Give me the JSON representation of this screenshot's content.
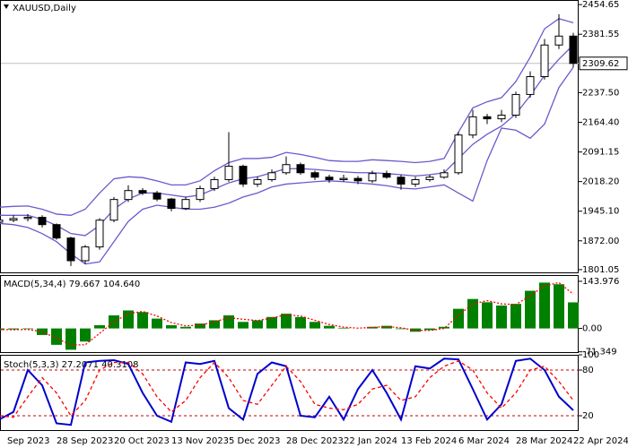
{
  "chart_data": [
    {
      "type": "candlestick",
      "title": "XAUUSD,Daily",
      "categories": [
        "Sep 2023",
        null,
        null,
        null,
        "28 Sep 2023",
        null,
        null,
        null,
        "20 Oct 2023",
        null,
        null,
        null,
        "13 Nov 2023",
        null,
        null,
        null,
        "5 Dec 2023",
        null,
        null,
        null,
        "28 Dec 2023",
        null,
        null,
        null,
        "22 Jan 2024",
        null,
        null,
        null,
        "13 Feb 2024",
        null,
        null,
        null,
        "6 Mar 2024",
        null,
        null,
        null,
        "28 Mar 2024",
        null,
        null,
        null,
        "22 Apr 2024"
      ],
      "open": [
        1918,
        1923,
        1927,
        1930,
        1912,
        1879,
        1823,
        1857,
        1923,
        1974,
        1996,
        1990,
        1975,
        1952,
        1974,
        2001,
        2023,
        2056,
        2012,
        2023,
        2040,
        2060,
        2040,
        2029,
        2023,
        2026,
        2020,
        2038,
        2029,
        2012,
        2023,
        2029,
        2040,
        2133,
        2178,
        2173,
        2182,
        2233,
        2277,
        2355,
        2377
      ],
      "high": [
        1930,
        1935,
        1938,
        1935,
        1915,
        1882,
        1862,
        1928,
        1980,
        2009,
        2002,
        1995,
        1978,
        1980,
        2008,
        2030,
        2140,
        2060,
        2030,
        2048,
        2080,
        2065,
        2045,
        2035,
        2035,
        2032,
        2045,
        2045,
        2035,
        2030,
        2035,
        2048,
        2140,
        2195,
        2185,
        2195,
        2240,
        2290,
        2370,
        2431,
        2385
      ],
      "low": [
        1915,
        1918,
        1920,
        1905,
        1875,
        1810,
        1815,
        1850,
        1918,
        1968,
        1985,
        1970,
        1945,
        1948,
        1968,
        1995,
        2018,
        2005,
        2005,
        2018,
        2035,
        2035,
        2022,
        2015,
        2018,
        2012,
        2015,
        2025,
        1998,
        2005,
        2018,
        2025,
        2035,
        2125,
        2160,
        2165,
        2175,
        2225,
        2270,
        2345,
        2300
      ],
      "close": [
        1923,
        1927,
        1930,
        1912,
        1879,
        1823,
        1857,
        1923,
        1974,
        1996,
        1990,
        1975,
        1952,
        1974,
        2001,
        2023,
        2056,
        2012,
        2023,
        2040,
        2060,
        2040,
        2029,
        2023,
        2026,
        2020,
        2038,
        2029,
        2012,
        2023,
        2029,
        2040,
        2133,
        2178,
        2173,
        2182,
        2233,
        2277,
        2355,
        2377,
        2309.62
      ],
      "up_color": "#ffffff",
      "down_color": "#000000",
      "overlays": [
        {
          "color": "#6a5acd",
          "values": [
            1955,
            1957,
            1958,
            1950,
            1938,
            1935,
            1950,
            1990,
            2025,
            2030,
            2028,
            2020,
            2010,
            2010,
            2020,
            2045,
            2065,
            2075,
            2075,
            2078,
            2090,
            2085,
            2078,
            2070,
            2068,
            2068,
            2072,
            2070,
            2068,
            2065,
            2068,
            2075,
            2140,
            2200,
            2215,
            2225,
            2265,
            2325,
            2395,
            2420,
            2410
          ]
        },
        {
          "color": "#6a5acd",
          "values": [
            1935,
            1935,
            1935,
            1925,
            1910,
            1890,
            1885,
            1910,
            1950,
            1975,
            1990,
            1990,
            1985,
            1980,
            1985,
            2000,
            2015,
            2025,
            2030,
            2040,
            2050,
            2050,
            2048,
            2045,
            2042,
            2040,
            2040,
            2038,
            2035,
            2032,
            2035,
            2040,
            2075,
            2110,
            2135,
            2155,
            2185,
            2230,
            2280,
            2320,
            2355
          ]
        },
        {
          "color": "#6a5acd",
          "values": [
            1915,
            1912,
            1905,
            1890,
            1870,
            1840,
            1815,
            1820,
            1870,
            1920,
            1950,
            1960,
            1955,
            1950,
            1950,
            1955,
            1965,
            1980,
            1990,
            2005,
            2012,
            2015,
            2018,
            2020,
            2018,
            2015,
            2012,
            2008,
            2002,
            2000,
            2005,
            2010,
            1990,
            1970,
            2070,
            2150,
            2145,
            2125,
            2160,
            2250,
            2300
          ]
        }
      ],
      "last_price": 2309.62,
      "ylim": [
        1792,
        2466
      ],
      "yticks": [
        2454.65,
        2381.55,
        {
          "value": 2237.5,
          "label": "2237.50"
        },
        {
          "value": 2164.4,
          "label": "2164.40"
        },
        2091.15,
        {
          "value": 2018.2,
          "label": "2018.20"
        },
        {
          "value": 1945.1,
          "label": "1945.10"
        },
        {
          "value": 1872,
          "label": "1872.00"
        },
        1801.05
      ]
    },
    {
      "type": "bar",
      "title": "MACD(5,34,4) 79.667 104.640",
      "series": [
        {
          "style": "histogram",
          "color": "#008000",
          "values": [
            -5,
            -3,
            -2,
            -20,
            -50,
            -65,
            -40,
            10,
            40,
            55,
            50,
            30,
            10,
            5,
            15,
            25,
            40,
            20,
            25,
            35,
            45,
            35,
            20,
            8,
            2,
            0,
            5,
            8,
            -2,
            -10,
            -5,
            5,
            60,
            90,
            80,
            70,
            75,
            115,
            140,
            135,
            79.667
          ]
        },
        {
          "style": "dotted",
          "color": "#ff0000",
          "values": [
            -3,
            -4,
            -3,
            -10,
            -30,
            -50,
            -50,
            -15,
            20,
            45,
            52,
            38,
            18,
            8,
            10,
            20,
            33,
            28,
            24,
            32,
            42,
            38,
            25,
            12,
            4,
            1,
            3,
            6,
            2,
            -6,
            -6,
            0,
            40,
            75,
            85,
            75,
            73,
            100,
            130,
            140,
            104.64
          ]
        }
      ],
      "ylim": [
        -75,
        163
      ],
      "yticks": [
        143.976,
        {
          "value": 0,
          "label": "0.00"
        },
        -71.349
      ]
    },
    {
      "type": "line",
      "title": "Stoch(5,3,3) 27.2071 40.3108",
      "series": [
        {
          "style": "solid",
          "color": "#0000cd",
          "values": [
            15,
            25,
            80,
            60,
            10,
            8,
            90,
            92,
            93,
            88,
            50,
            20,
            12,
            90,
            88,
            92,
            30,
            15,
            75,
            90,
            85,
            20,
            18,
            45,
            15,
            55,
            80,
            50,
            15,
            85,
            82,
            95,
            94,
            55,
            15,
            35,
            92,
            95,
            80,
            45,
            27.2071
          ]
        },
        {
          "style": "dashed",
          "color": "#ff0000",
          "values": [
            20,
            18,
            45,
            70,
            50,
            20,
            40,
            80,
            90,
            90,
            75,
            45,
            25,
            40,
            70,
            90,
            70,
            40,
            35,
            60,
            85,
            65,
            35,
            30,
            28,
            35,
            55,
            60,
            40,
            45,
            70,
            85,
            92,
            80,
            50,
            30,
            50,
            80,
            85,
            65,
            40.3108
          ]
        }
      ],
      "levels": [
        80,
        20
      ],
      "level_color": "#c00000",
      "ylim": [
        0,
        100
      ],
      "yticks": [
        100,
        80,
        20
      ]
    }
  ]
}
